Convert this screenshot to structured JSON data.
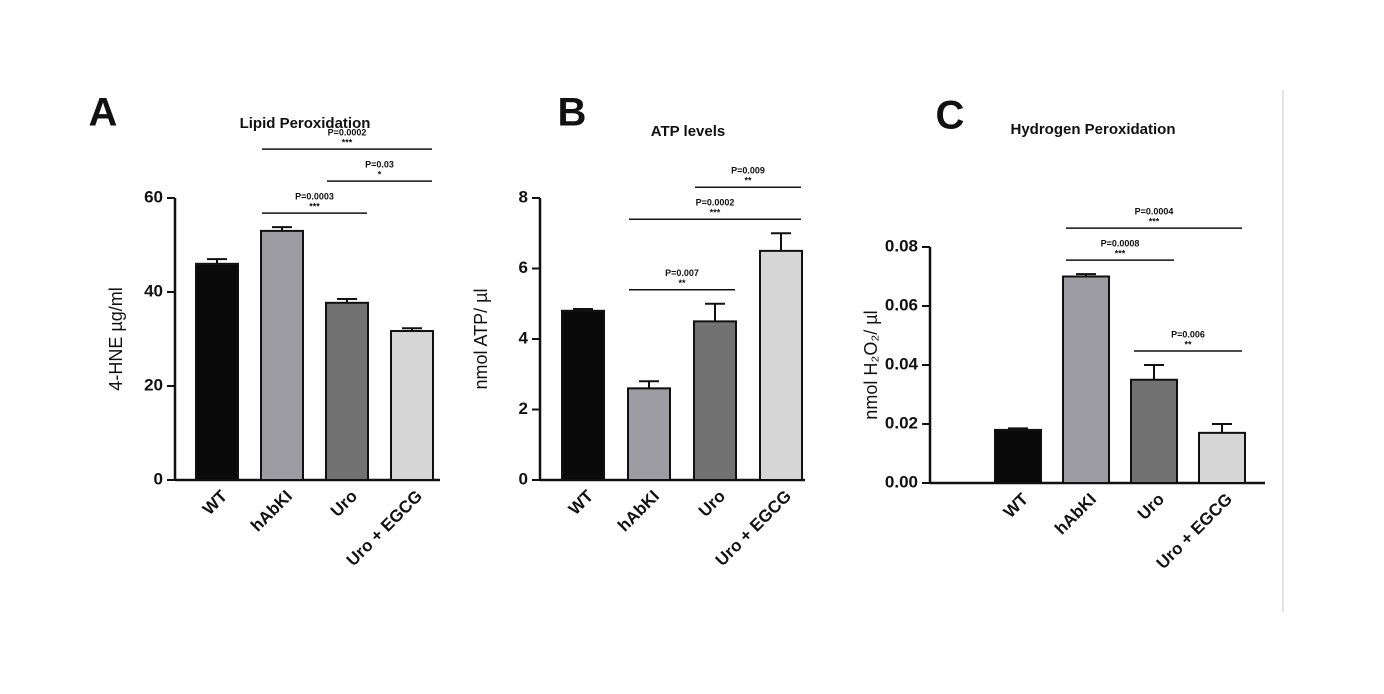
{
  "chart_data": [
    {
      "type": "bar",
      "label": "A",
      "title": "Lipid Peroxidation",
      "ylabel": "4-HNE µg/ml",
      "categories": [
        "WT",
        "hAbKI",
        "Uro",
        "Uro + EGCG"
      ],
      "colors": [
        "#0a0a0a",
        "#9c9ca2",
        "#727272",
        "#d6d6d6"
      ],
      "values": [
        46,
        53,
        37.7,
        31.7
      ],
      "errors": [
        1,
        0.8,
        0.8,
        0.6
      ],
      "ylim": [
        0,
        60
      ],
      "yticks": [
        0,
        20,
        40,
        60
      ],
      "comparisons": [
        {
          "groups": [
            "hAbKI",
            "Uro"
          ],
          "p": "P=0.0003",
          "stars": "***"
        },
        {
          "groups": [
            "Uro",
            "Uro + EGCG"
          ],
          "p": "P=0.03",
          "stars": "*"
        },
        {
          "groups": [
            "hAbKI",
            "Uro + EGCG"
          ],
          "p": "P=0.0002",
          "stars": "***"
        }
      ]
    },
    {
      "type": "bar",
      "label": "B",
      "title": "ATP levels",
      "ylabel": "nmol ATP/ µl",
      "categories": [
        "WT",
        "hAbKI",
        "Uro",
        "Uro + EGCG"
      ],
      "colors": [
        "#0a0a0a",
        "#9c9ca2",
        "#727272",
        "#d6d6d6"
      ],
      "values": [
        4.8,
        2.6,
        4.5,
        6.5
      ],
      "errors": [
        0.05,
        0.2,
        0.5,
        0.5
      ],
      "ylim": [
        0,
        8
      ],
      "yticks": [
        0,
        2,
        4,
        6,
        8
      ],
      "comparisons": [
        {
          "groups": [
            "hAbKI",
            "Uro"
          ],
          "p": "P=0.007",
          "stars": "**"
        },
        {
          "groups": [
            "hAbKI",
            "Uro + EGCG"
          ],
          "p": "P=0.0002",
          "stars": "***"
        },
        {
          "groups": [
            "Uro",
            "Uro + EGCG"
          ],
          "p": "P=0.009",
          "stars": "**"
        }
      ]
    },
    {
      "type": "bar",
      "label": "C",
      "title": "Hydrogen Peroxidation",
      "ylabel": "nmol H₂O₂/ µl",
      "categories": [
        "WT",
        "hAbKI",
        "Uro",
        "Uro + EGCG"
      ],
      "colors": [
        "#0a0a0a",
        "#9c9ca2",
        "#727272",
        "#d6d6d6"
      ],
      "values": [
        0.018,
        0.07,
        0.035,
        0.017
      ],
      "errors": [
        0.0005,
        0.0008,
        0.005,
        0.003
      ],
      "ylim": [
        0,
        0.08
      ],
      "yticks": [
        {
          "value": 0,
          "label": "0.00"
        },
        0.02,
        0.04,
        0.06,
        0.08
      ],
      "comparisons": [
        {
          "groups": [
            "Uro",
            "Uro + EGCG"
          ],
          "p": "P=0.006",
          "stars": "**"
        },
        {
          "groups": [
            "hAbKI",
            "Uro"
          ],
          "p": "P=0.0008",
          "stars": "***"
        },
        {
          "groups": [
            "hAbKI",
            "Uro + EGCG"
          ],
          "p": "P=0.0004",
          "stars": "***"
        }
      ]
    }
  ]
}
